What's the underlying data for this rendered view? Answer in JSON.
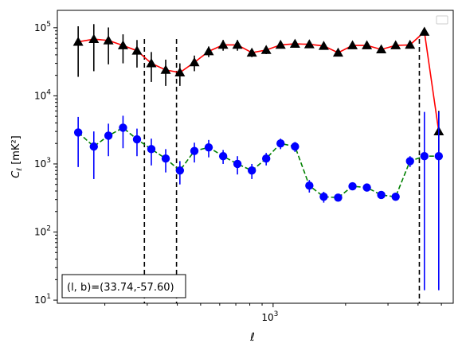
{
  "chart_data": {
    "type": "line",
    "title": "",
    "xlabel": "ℓ",
    "ylabel_main": "C",
    "ylabel_sub": "ℓ",
    "ylabel_unit": "[mK²]",
    "x_scale": "log",
    "y_scale": "log",
    "xlim": [
      127,
      5600
    ],
    "ylim": [
      9,
      180000
    ],
    "x_major_ticks": [
      {
        "value": 1000,
        "base": "10",
        "exp": "3"
      }
    ],
    "y_major_ticks": [
      {
        "value": 10,
        "base": "10",
        "exp": "1"
      },
      {
        "value": 100,
        "base": "10",
        "exp": "2"
      },
      {
        "value": 1000,
        "base": "10",
        "exp": "3"
      },
      {
        "value": 10000,
        "base": "10",
        "exp": "4"
      },
      {
        "value": 100000,
        "base": "10",
        "exp": "5"
      }
    ],
    "vlines": [
      292,
      397,
      4050
    ],
    "annotation": "(l, b)=(33.74,-57.60)",
    "legend": "upper right (empty)",
    "grid": false,
    "colors": {
      "series_upper_marker": "#000000",
      "series_upper_line": "#ff0000",
      "series_lower_marker": "#0000ff",
      "series_lower_line": "#008000",
      "vline": "#000000"
    },
    "series": [
      {
        "marker": "triangle",
        "line_style": "solid",
        "x": [
          155,
          180,
          207,
          238,
          272,
          312,
          358,
          410,
          471,
          540,
          620,
          711,
          816,
          936,
          1074,
          1233,
          1414,
          1623,
          1862,
          2137,
          2452,
          2813,
          3228,
          3704,
          4250,
          4876,
          5300
        ],
        "y": [
          62000,
          68000,
          65000,
          55000,
          46000,
          30000,
          24000,
          22000,
          31000,
          45000,
          56000,
          56000,
          43000,
          47000,
          56000,
          58000,
          57000,
          54000,
          43000,
          55000,
          55000,
          48000,
          55000,
          56000,
          87000,
          3000,
          3000
        ],
        "err_low": [
          43000,
          45000,
          36000,
          25000,
          20000,
          14000,
          10000,
          8000,
          8000,
          8000,
          10000,
          10000,
          6000,
          6000,
          6000,
          6000,
          5000,
          5000,
          4000,
          4000,
          4000,
          4000,
          5000,
          5000,
          8000,
          1500,
          1500
        ],
        "err_high": [
          43000,
          45000,
          36000,
          25000,
          20000,
          14000,
          10000,
          8000,
          8000,
          8000,
          10000,
          10000,
          6000,
          6000,
          6000,
          6000,
          5000,
          5000,
          4000,
          4000,
          4000,
          4000,
          5000,
          5000,
          8000,
          3000,
          3000
        ],
        "points_shown": [
          155,
          180,
          207,
          238,
          272,
          312,
          358,
          410,
          471,
          540,
          620,
          711,
          816,
          936,
          1074,
          1233,
          1414,
          1623,
          1862,
          2137,
          2452,
          2813,
          3228,
          3704,
          4250,
          4876
        ],
        "shown_y": [
          62000,
          68000,
          65000,
          55000,
          46000,
          30000,
          24000,
          22000,
          31000,
          45000,
          56000,
          56000,
          43000,
          47000,
          56000,
          58000,
          57000,
          54000,
          43000,
          55000,
          55000,
          48000,
          55000,
          56000,
          87000,
          3000
        ]
      },
      {
        "marker": "circle",
        "line_style": "dashed",
        "x": [
          155,
          180,
          207,
          238,
          272,
          312,
          358,
          410,
          471,
          540,
          620,
          711,
          816,
          936,
          1074,
          1233,
          1414,
          1623,
          1862,
          2137,
          2452,
          2813,
          3228,
          3704,
          4250,
          4876
        ],
        "y": [
          2900,
          1800,
          2600,
          3400,
          2300,
          1650,
          1200,
          800,
          1550,
          1750,
          1300,
          1000,
          800,
          1200,
          2000,
          1800,
          480,
          330,
          320,
          470,
          450,
          350,
          330,
          1100,
          1300,
          1300
        ],
        "err_low": [
          2000,
          1200,
          1300,
          1700,
          1000,
          700,
          450,
          300,
          500,
          500,
          300,
          300,
          200,
          250,
          350,
          300,
          100,
          60,
          0,
          0,
          0,
          0,
          0,
          200,
          1286,
          1286
        ],
        "err_high": [
          2000,
          1200,
          1300,
          1700,
          1000,
          700,
          450,
          300,
          500,
          500,
          300,
          300,
          200,
          250,
          350,
          300,
          100,
          60,
          0,
          0,
          0,
          0,
          0,
          200,
          4500,
          4500
        ]
      }
    ]
  }
}
